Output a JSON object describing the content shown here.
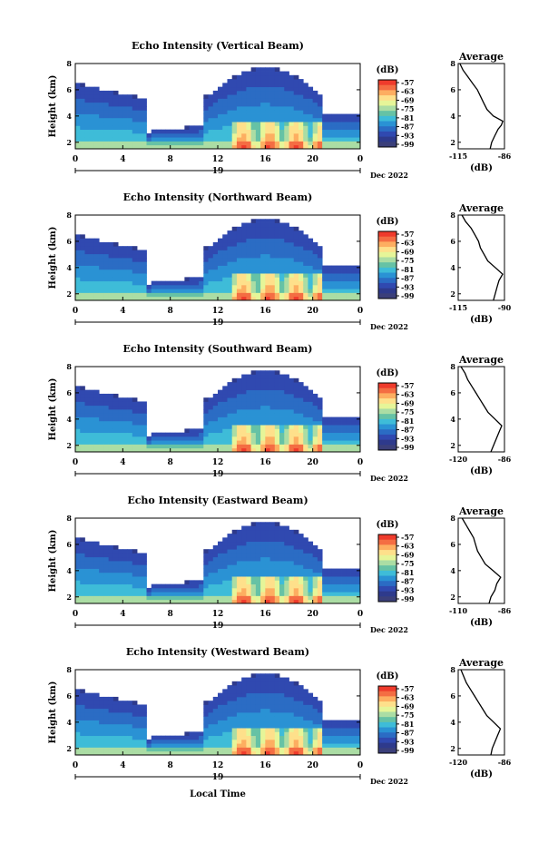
{
  "figure": {
    "xlabel": "Local Time",
    "month_label": "Dec 2022"
  },
  "colorbar": {
    "unit": "(dB)",
    "ticks": [
      "-57",
      "-63",
      "-69",
      "-75",
      "-81",
      "-87",
      "-93",
      "-99"
    ],
    "colors": [
      "#ef3b2c",
      "#f46d43",
      "#fdae61",
      "#fee08b",
      "#e6f598",
      "#abdda4",
      "#66c2a5",
      "#3ebcd8",
      "#2a92d4",
      "#2b6cc4",
      "#3049b0",
      "#2e3a8c",
      "#3b3f7a"
    ]
  },
  "chart_data": [
    {
      "type": "heatmap",
      "title": "Echo Intensity (Vertical Beam)",
      "ylabel": "Height (km)",
      "xlabel": "Local Time",
      "x_ticks": [
        "0",
        "4",
        "8",
        "12",
        "16",
        "20",
        "0"
      ],
      "date_label": "19",
      "y_ticks": [
        "2",
        "4",
        "6",
        "8"
      ],
      "xlim": [
        0,
        24
      ],
      "ylim": [
        1.5,
        8
      ],
      "value_range_db": [
        -99,
        -57
      ],
      "profile": {
        "title": "Average",
        "xlabel": "(dB)",
        "x_ticks": [
          "-115",
          "-86"
        ],
        "y_ticks": [
          "2",
          "4",
          "6",
          "8"
        ],
        "xlim": [
          -115,
          -86
        ],
        "ylim": [
          1.5,
          8
        ],
        "height_km": [
          1.5,
          2.0,
          2.5,
          3.0,
          3.3,
          3.6,
          4.0,
          4.5,
          5.0,
          5.5,
          6.0,
          6.5,
          7.0,
          7.5,
          8.0
        ],
        "db": [
          -95,
          -94,
          -92,
          -90,
          -88,
          -87,
          -93,
          -97,
          -99,
          -101,
          -103,
          -106,
          -109,
          -112,
          -114
        ]
      }
    },
    {
      "type": "heatmap",
      "title": "Echo Intensity (Northward Beam)",
      "ylabel": "Height (km)",
      "xlabel": "Local Time",
      "x_ticks": [
        "0",
        "4",
        "8",
        "12",
        "16",
        "20",
        "0"
      ],
      "date_label": "19",
      "y_ticks": [
        "2",
        "4",
        "6",
        "8"
      ],
      "xlim": [
        0,
        24
      ],
      "ylim": [
        1.5,
        8
      ],
      "value_range_db": [
        -99,
        -57
      ],
      "profile": {
        "title": "Average",
        "xlabel": "(dB)",
        "x_ticks": [
          "-115",
          "-90"
        ],
        "y_ticks": [
          "2",
          "4",
          "6",
          "8"
        ],
        "xlim": [
          -115,
          -90
        ],
        "ylim": [
          1.5,
          8
        ],
        "height_km": [
          1.5,
          2.0,
          2.5,
          3.0,
          3.5,
          4.0,
          4.5,
          5.0,
          5.5,
          6.0,
          6.5,
          7.0,
          7.5,
          8.0
        ],
        "db": [
          -96,
          -95,
          -94,
          -93,
          -91,
          -95,
          -99,
          -101,
          -103,
          -104,
          -106,
          -108,
          -111,
          -113
        ]
      }
    },
    {
      "type": "heatmap",
      "title": "Echo Intensity (Southward Beam)",
      "ylabel": "Height (km)",
      "xlabel": "Local Time",
      "x_ticks": [
        "0",
        "4",
        "8",
        "12",
        "16",
        "20",
        "0"
      ],
      "date_label": "19",
      "y_ticks": [
        "2",
        "4",
        "6",
        "8"
      ],
      "xlim": [
        0,
        24
      ],
      "ylim": [
        1.5,
        8
      ],
      "value_range_db": [
        -99,
        -57
      ],
      "profile": {
        "title": "Average",
        "xlabel": "(dB)",
        "x_ticks": [
          "-120",
          "-86"
        ],
        "y_ticks": [
          "2",
          "4",
          "6",
          "8"
        ],
        "xlim": [
          -120,
          -86
        ],
        "ylim": [
          1.5,
          8
        ],
        "height_km": [
          1.5,
          2.0,
          2.5,
          3.0,
          3.5,
          4.0,
          4.5,
          5.0,
          5.5,
          6.0,
          6.5,
          7.0,
          7.5,
          8.0
        ],
        "db": [
          -96,
          -94,
          -92,
          -90,
          -88,
          -93,
          -98,
          -101,
          -104,
          -107,
          -110,
          -113,
          -115,
          -118
        ]
      }
    },
    {
      "type": "heatmap",
      "title": "Echo Intensity (Eastward Beam)",
      "ylabel": "Height (km)",
      "xlabel": "Local Time",
      "x_ticks": [
        "0",
        "4",
        "8",
        "12",
        "16",
        "20",
        "0"
      ],
      "date_label": "19",
      "y_ticks": [
        "2",
        "4",
        "6",
        "8"
      ],
      "xlim": [
        0,
        24
      ],
      "ylim": [
        1.5,
        8
      ],
      "value_range_db": [
        -99,
        -57
      ],
      "profile": {
        "title": "Average",
        "xlabel": "(dB)",
        "x_ticks": [
          "-110",
          "-86"
        ],
        "y_ticks": [
          "2",
          "4",
          "6",
          "8"
        ],
        "xlim": [
          -110,
          -86
        ],
        "ylim": [
          1.5,
          8
        ],
        "height_km": [
          1.5,
          2.0,
          2.5,
          3.0,
          3.5,
          4.0,
          4.5,
          5.0,
          5.5,
          6.0,
          6.5,
          7.0,
          7.5,
          8.0
        ],
        "db": [
          -94,
          -93,
          -91,
          -90,
          -88,
          -92,
          -96,
          -98,
          -100,
          -101,
          -102,
          -104,
          -106,
          -108
        ]
      }
    },
    {
      "type": "heatmap",
      "title": "Echo Intensity (Westward Beam)",
      "ylabel": "Height (km)",
      "xlabel": "Local Time",
      "x_ticks": [
        "0",
        "4",
        "8",
        "12",
        "16",
        "20",
        "0"
      ],
      "date_label": "19",
      "y_ticks": [
        "2",
        "4",
        "6",
        "8"
      ],
      "xlim": [
        0,
        24
      ],
      "ylim": [
        1.5,
        8
      ],
      "value_range_db": [
        -99,
        -57
      ],
      "profile": {
        "title": "Average",
        "xlabel": "(dB)",
        "x_ticks": [
          "-120",
          "-86"
        ],
        "y_ticks": [
          "2",
          "4",
          "6",
          "8"
        ],
        "xlim": [
          -120,
          -86
        ],
        "ylim": [
          1.5,
          8
        ],
        "height_km": [
          1.5,
          2.0,
          2.5,
          3.0,
          3.5,
          4.0,
          4.5,
          5.0,
          5.5,
          6.0,
          6.5,
          7.0,
          7.5,
          8.0
        ],
        "db": [
          -96,
          -95,
          -93,
          -91,
          -89,
          -94,
          -99,
          -102,
          -105,
          -108,
          -111,
          -114,
          -116,
          -118
        ]
      }
    }
  ]
}
